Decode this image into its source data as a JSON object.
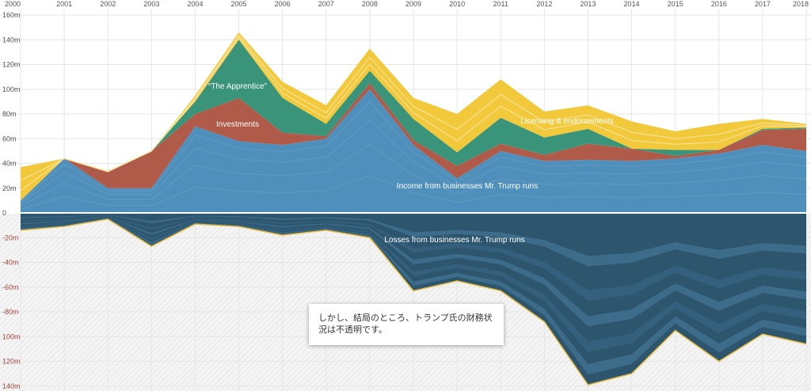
{
  "note": {
    "text": "しかし、結局のところ、トランプ氏の財務状況は不透明です。"
  },
  "colors": {
    "business": "#4f8fbb",
    "business_alt": "#3c6d8f",
    "investments": "#b05b4a",
    "apprentice": "#3a9479",
    "licensing": "#f2c93b",
    "licensing_light": "#f9e3a0",
    "losses": "#2d556e",
    "losses_alt": "#3f7497",
    "loss_edge": "#e8b93a",
    "grid": "#e6e6e6",
    "baseline": "#ffffff"
  },
  "chart_data": {
    "type": "area",
    "x": [
      "2000",
      "2001",
      "2002",
      "2003",
      "2004",
      "2005",
      "2006",
      "2007",
      "2008",
      "2009",
      "2010",
      "2011",
      "2012",
      "2013",
      "2014",
      "2015",
      "2016",
      "2017",
      "2018"
    ],
    "y_ticks": [
      "160m",
      "140m",
      "120m",
      "100m",
      "80m",
      "60m",
      "40m",
      "20m",
      "0",
      "-20m",
      "-40m",
      "-60m",
      "-80m",
      "100m",
      "120m",
      "140m"
    ],
    "ylim": [
      -140,
      160
    ],
    "grid": true,
    "series": [
      {
        "name": "Income from businesses Mr. Trump runs",
        "color": "#4f8fbb",
        "values": [
          10,
          44,
          20,
          20,
          70,
          58,
          55,
          60,
          100,
          55,
          28,
          50,
          42,
          43,
          42,
          44,
          48,
          55,
          50
        ]
      },
      {
        "name": "Investments",
        "color": "#b05b4a",
        "values": [
          0,
          0,
          13,
          30,
          10,
          35,
          10,
          2,
          5,
          4,
          10,
          6,
          5,
          13,
          10,
          2,
          3,
          12,
          18
        ]
      },
      {
        "name": "“The Apprentice”",
        "color": "#3a9479",
        "values": [
          0,
          0,
          0,
          0,
          10,
          47,
          28,
          10,
          10,
          17,
          11,
          21,
          14,
          12,
          0,
          5,
          0,
          1,
          1
        ]
      },
      {
        "name": "Licensing & endorsements",
        "color": "#f2c93b",
        "values": [
          27,
          0,
          1,
          0,
          5,
          6,
          13,
          15,
          18,
          17,
          31,
          31,
          21,
          19,
          22,
          15,
          21,
          8,
          3
        ]
      },
      {
        "name": "Losses from businesses Mr. Trump runs",
        "color": "#2d556e",
        "values": [
          -14,
          -11,
          -5,
          -27,
          -9,
          -11,
          -18,
          -14,
          -20,
          -63,
          -55,
          -63,
          -88,
          -139,
          -130,
          -95,
          -120,
          -98,
          -106
        ]
      }
    ],
    "annotations": [
      {
        "text": "“The Apprentice”"
      },
      {
        "text": "Investments"
      },
      {
        "text": "Licensing & endorsements"
      },
      {
        "text": "Income from businesses Mr. Trump runs"
      },
      {
        "text": "Losses from businesses Mr. Trump runs"
      }
    ]
  }
}
